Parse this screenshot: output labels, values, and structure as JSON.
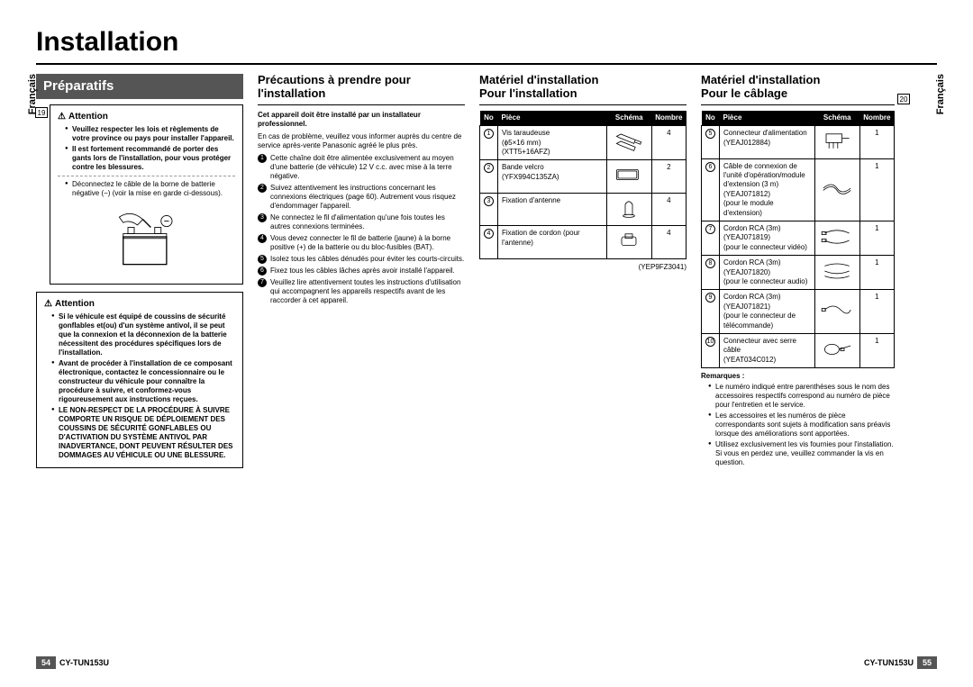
{
  "page": {
    "title": "Installation",
    "lang_label": "Français",
    "model": "CY-TUN153U",
    "left_page_num": "54",
    "right_page_num": "55"
  },
  "col1": {
    "header": "Préparatifs",
    "box1": {
      "num": "19",
      "title": "Attention",
      "bullets": [
        "Veuillez respecter les lois et règlements de votre province ou pays pour installer l'appareil.",
        "Il est fortement recommandé de porter des gants lors de l'installation, pour vous protéger contre les blessures."
      ],
      "note": "Déconnectez le câble de la borne de batterie négative (−) (voir la mise en garde ci-dessous)."
    },
    "box2": {
      "title": "Attention",
      "bullets": [
        "Si le véhicule est équipé de coussins de sécurité gonflables et(ou) d'un système antivol, il se peut que la connexion et la déconnexion de la batterie nécessitent des procédures spécifiques lors de l'installation.",
        "Avant de procéder à l'installation de ce composant électronique, contactez le concessionnaire ou le constructeur du véhicule pour connaître la procédure à suivre, et conformez-vous rigoureusement aux instructions reçues.",
        "LE NON-RESPECT DE LA PROCÉDURE À SUIVRE COMPORTE UN RISQUE DE DÉPLOIEMENT DES COUSSINS DE SÉCURITÉ GONFLABLES OU D'ACTIVATION DU SYSTÈME ANTIVOL PAR INADVERTANCE, DONT PEUVENT RÉSULTER DES DOMMAGES AU VÉHICULE OU UNE BLESSURE."
      ]
    }
  },
  "col2": {
    "header": "Précautions à prendre pour l'installation",
    "bold_note": "Cet appareil doit être installé par un installateur professionnel.",
    "plain": "En cas de problème, veuillez vous informer auprès du centre de service après-vente Panasonic agréé le plus près.",
    "steps": [
      "Cette chaîne doit être alimentée exclusivement au moyen d'une batterie (de véhicule) 12 V c.c. avec mise à la terre négative.",
      "Suivez attentivement les instructions concernant les connexions électriques (page 60). Autrement vous risquez d'endommager l'appareil.",
      "Ne connectez le fil d'alimentation qu'une fois toutes les autres connexions terminées.",
      "Vous devez connecter le fil de batterie (jaune) à la borne positive (+) de la batterie ou du bloc-fusibles (BAT).",
      "Isolez tous les câbles dénudés pour éviter les courts-circuits.",
      "Fixez tous les câbles lâches après avoir installé l'appareil.",
      "Veuillez lire attentivement toutes les instructions d'utilisation qui accompagnent les appareils respectifs avant de les raccorder à cet appareil."
    ]
  },
  "col3": {
    "header1": "Matériel d'installation",
    "header2": "Pour l'installation",
    "table": {
      "cols": {
        "no": "No",
        "piece": "Pièce",
        "schema": "Schéma",
        "qty": "Nombre"
      },
      "rows": [
        {
          "n": "1",
          "piece": "Vis taraudeuse\n(ϕ5×16 mm)\n(XTT5+16AFZ)",
          "qty": "4",
          "icon": "screw"
        },
        {
          "n": "2",
          "piece": "Bande velcro\n(YFX994C135ZA)",
          "qty": "2",
          "icon": "velcro"
        },
        {
          "n": "3",
          "piece": "Fixation d'antenne",
          "qty": "4",
          "icon": "clamp"
        },
        {
          "n": "4",
          "piece": "Fixation de cordon (pour l'antenne)",
          "qty": "4",
          "icon": "clip"
        }
      ],
      "footnote": "(YEP9FZ3041)"
    }
  },
  "col4": {
    "header1": "Matériel d'installation",
    "header2": "Pour le câblage",
    "box_num": "20",
    "table": {
      "cols": {
        "no": "No",
        "piece": "Pièce",
        "schema": "Schéma",
        "qty": "Nombre"
      },
      "rows": [
        {
          "n": "5",
          "piece": "Connecteur d'alimentation\n(YEAJ012884)",
          "qty": "1",
          "icon": "conn"
        },
        {
          "n": "6",
          "piece": "Câble de connexion de l'unité d'opération/module d'extension (3 m)\n(YEAJ071812)\n(pour le module d'extension)",
          "qty": "1",
          "icon": "cable1"
        },
        {
          "n": "7",
          "piece": "Cordon RCA (3m)\n(YEAJ071819)\n(pour le connecteur vidéo)",
          "qty": "1",
          "icon": "rca"
        },
        {
          "n": "8",
          "piece": "Cordon RCA (3m)\n(YEAJ071820)\n(pour le connecteur audio)",
          "qty": "1",
          "icon": "rca2"
        },
        {
          "n": "9",
          "piece": "Cordon RCA (3m)\n(YEAJ071821)\n(pour le connecteur de télécommande)",
          "qty": "1",
          "icon": "rca3"
        },
        {
          "n": "10",
          "piece": "Connecteur avec serre câble\n(YEAT034C012)",
          "qty": "1",
          "icon": "tie"
        }
      ]
    },
    "remarks_title": "Remarques :",
    "remarks": [
      "Le numéro indiqué entre parenthèses sous le nom des accessoires respectifs correspond au numéro de pièce pour l'entretien et le service.",
      "Les accessoires et les numéros de pièce correspondants sont sujets à modification sans préavis lorsque des améliorations sont apportées.",
      "Utilisez exclusivement les vis fournies pour l'installation. Si vous en perdez une, veuillez commander la vis en question."
    ]
  }
}
